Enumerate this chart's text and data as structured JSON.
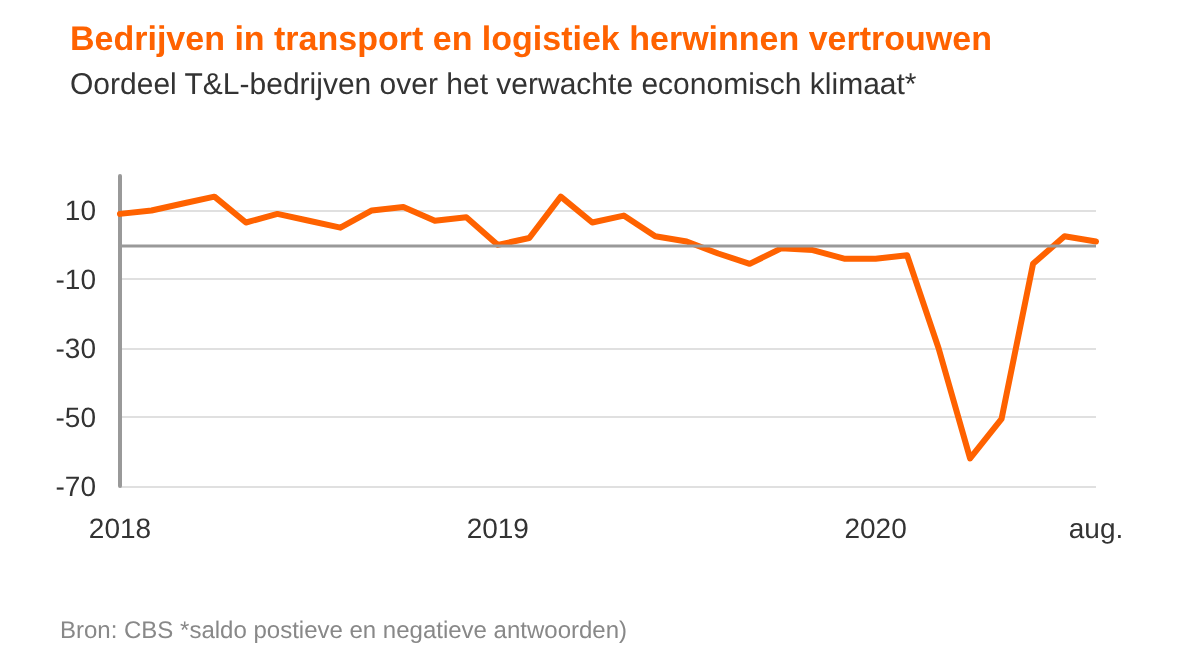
{
  "chart_data": {
    "type": "line",
    "title": "Bedrijven in transport en logistiek herwinnen vertrouwen",
    "subtitle": "Oordeel T&L-bedrijven over het verwachte economisch klimaat*",
    "categories": [
      "2018",
      null,
      null,
      null,
      null,
      null,
      null,
      null,
      null,
      null,
      null,
      null,
      "2019",
      null,
      null,
      null,
      null,
      null,
      null,
      null,
      null,
      null,
      null,
      null,
      "2020",
      null,
      null,
      null,
      null,
      null,
      null,
      "aug."
    ],
    "series": [
      {
        "color": "#ff6200",
        "values": [
          9,
          10,
          12,
          14,
          6.5,
          9,
          7,
          5,
          10,
          11,
          7,
          8,
          0,
          2,
          14,
          6.5,
          8.5,
          2.5,
          1,
          -2.5,
          -5.5,
          -1,
          -1.5,
          -4,
          -4,
          -3,
          -30,
          -62,
          -50.5,
          -5.5,
          2.5,
          1
        ]
      }
    ],
    "ylim": [
      -70,
      20
    ],
    "yticks": [
      -70,
      -50,
      -30,
      -10,
      10
    ],
    "grid": "y",
    "marker": "none",
    "line_style": "solid",
    "ref_lines": [
      {
        "axis": "y",
        "value": 0,
        "color": "#999999"
      }
    ],
    "annotations": [
      "Bron: CBS *saldo postieve en negatieve antwoorden)"
    ]
  }
}
